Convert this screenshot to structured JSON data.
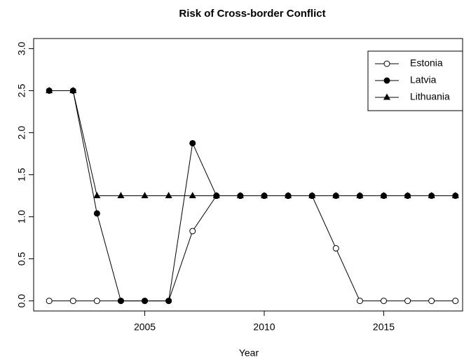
{
  "chart_data": {
    "type": "line",
    "title": "Risk of Cross-border Conflict",
    "x_label": "Year",
    "x": [
      2001,
      2002,
      2003,
      2004,
      2005,
      2006,
      2007,
      2008,
      2009,
      2010,
      2011,
      2012,
      2013,
      2014,
      2015,
      2016,
      2017,
      2018
    ],
    "series": [
      {
        "name": "Estonia",
        "color": "#000000",
        "marker": "open-circle",
        "values": [
          0,
          0,
          0,
          0,
          0,
          0,
          0.83,
          1.25,
          1.25,
          1.25,
          1.25,
          1.25,
          0.625,
          0,
          0,
          0,
          0,
          0
        ]
      },
      {
        "name": "Latvia",
        "color": "#000000",
        "marker": "circle",
        "values": [
          2.5,
          2.5,
          1.04,
          0,
          0,
          0,
          1.875,
          1.25,
          1.25,
          1.25,
          1.25,
          1.25,
          1.25,
          1.25,
          1.25,
          1.25,
          1.25,
          1.25
        ]
      },
      {
        "name": "Lithuania",
        "color": "#000000",
        "marker": "triangle",
        "values": [
          2.5,
          2.5,
          1.25,
          1.25,
          1.25,
          1.25,
          1.25,
          1.25,
          1.25,
          1.25,
          1.25,
          1.25,
          1.25,
          1.25,
          1.25,
          1.25,
          1.25,
          1.25
        ]
      }
    ],
    "xlim": [
      2000.35,
      2018.3
    ],
    "xticks": [
      2005,
      2010,
      2015
    ],
    "ylim": [
      -0.12,
      3.12
    ],
    "yticks": [
      {
        "value": 0,
        "label": "0.0"
      },
      {
        "value": 0.5,
        "label": "0.5"
      },
      {
        "value": 1,
        "label": "1.0"
      },
      {
        "value": 1.5,
        "label": "1.5"
      },
      {
        "value": 2,
        "label": "2.0"
      },
      {
        "value": 2.5,
        "label": "2.5"
      },
      {
        "value": 3,
        "label": "3.0"
      }
    ],
    "legend": "topright"
  }
}
